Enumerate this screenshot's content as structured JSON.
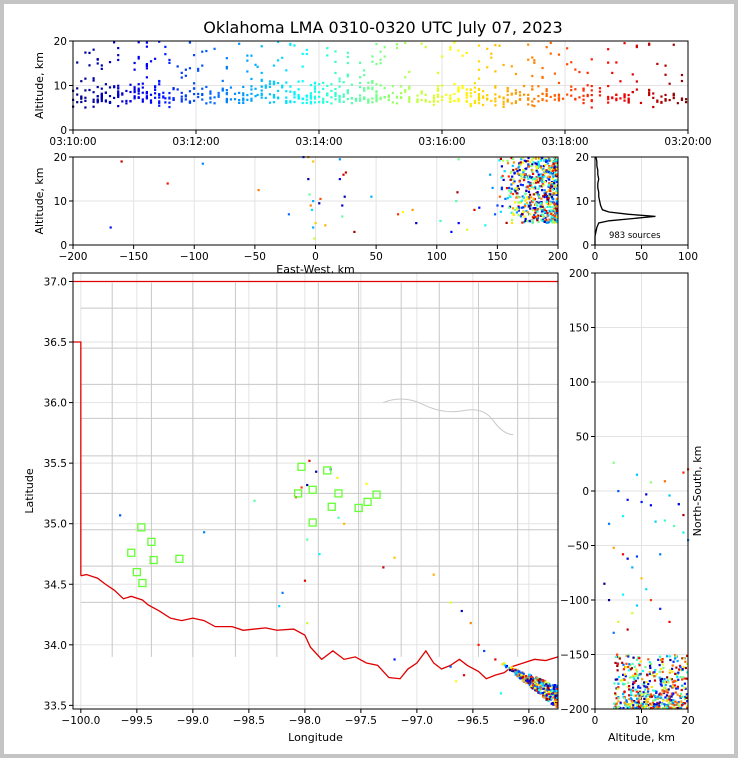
{
  "title": "Oklahoma LMA 0310-0320 UTC July 07, 2023",
  "colors": {
    "state_border": "#e00000",
    "county_border": "#c8c8c8",
    "station_marker": "#66ff33",
    "frame": "#c4c4c4"
  },
  "chart_data": [
    {
      "type": "scatter",
      "panel": "altitude-time",
      "xlabel": "",
      "ylabel": "Altitude, km",
      "xlim": [
        "03:10:00",
        "03:20:00"
      ],
      "ylim": [
        0,
        20
      ],
      "xticks": [
        "03:10:00",
        "03:12:00",
        "03:14:00",
        "03:16:00",
        "03:18:00",
        "03:20:00"
      ],
      "yticks": [
        "0",
        "10",
        "20"
      ],
      "grid": true,
      "color_by": "time",
      "colormap": "jet",
      "clusters": [
        {
          "t_start": "03:10:00",
          "t_end": "03:11:30",
          "alt_min": 5,
          "alt_max": 20,
          "count": 150
        },
        {
          "t_start": "03:11:30",
          "t_end": "03:13:00",
          "alt_min": 5,
          "alt_max": 20,
          "count": 110
        },
        {
          "t_start": "03:13:00",
          "t_end": "03:15:00",
          "alt_min": 6,
          "alt_max": 20,
          "count": 200
        },
        {
          "t_start": "03:15:00",
          "t_end": "03:17:30",
          "alt_min": 5,
          "alt_max": 20,
          "count": 190
        },
        {
          "t_start": "03:17:30",
          "t_end": "03:20:00",
          "alt_min": 5,
          "alt_max": 20,
          "count": 140
        }
      ]
    },
    {
      "type": "scatter",
      "panel": "altitude-eastwest",
      "xlabel": "East-West, km",
      "ylabel": "Altitude, km",
      "xlim": [
        -200,
        200
      ],
      "ylim": [
        0,
        20
      ],
      "xticks": [
        "−200",
        "−150",
        "−100",
        "−50",
        "0",
        "50",
        "100",
        "150",
        "200"
      ],
      "yticks": [
        "0",
        "10",
        "20"
      ],
      "grid": true,
      "scattered": [
        [
          -160,
          19
        ],
        [
          -122,
          14
        ],
        [
          -93,
          18.5
        ],
        [
          -169,
          4
        ],
        [
          -47,
          12.5
        ],
        [
          -22,
          7
        ],
        [
          -10,
          20
        ],
        [
          -6,
          20
        ],
        [
          -2,
          19
        ],
        [
          -6,
          15
        ],
        [
          -5,
          11.5
        ],
        [
          -2,
          10
        ],
        [
          -4,
          9
        ],
        [
          -3,
          8
        ],
        [
          0,
          5
        ],
        [
          -2,
          4
        ],
        [
          -1,
          1.5
        ],
        [
          3,
          9.5
        ],
        [
          4,
          10.5
        ],
        [
          8,
          4.5
        ],
        [
          20,
          19.5
        ],
        [
          23,
          16
        ],
        [
          20,
          15
        ],
        [
          24,
          11
        ],
        [
          22,
          9
        ],
        [
          22,
          6.5
        ],
        [
          25,
          16.5
        ],
        [
          32,
          3
        ],
        [
          46,
          11
        ],
        [
          68,
          7
        ],
        [
          72,
          7.5
        ],
        [
          80,
          8
        ],
        [
          83,
          5
        ],
        [
          103,
          5.5
        ],
        [
          112,
          3
        ],
        [
          118,
          5
        ],
        [
          118,
          19.5
        ],
        [
          117,
          12
        ],
        [
          116,
          10
        ],
        [
          125,
          3.5
        ],
        [
          131,
          8
        ],
        [
          135,
          8.5
        ],
        [
          140,
          4.5
        ],
        [
          144,
          16
        ],
        [
          150,
          9
        ],
        [
          152,
          11
        ],
        [
          148,
          7
        ],
        [
          146,
          13
        ]
      ],
      "dense_region": {
        "x_min": 150,
        "x_max": 200,
        "alt_min": 5,
        "alt_max": 20,
        "count": 600
      }
    },
    {
      "type": "line",
      "panel": "altitude-histogram",
      "xlabel": "",
      "ylabel": "",
      "xlim": [
        0,
        100
      ],
      "ylim": [
        0,
        20
      ],
      "xticks": [
        "0",
        "50",
        "100"
      ],
      "yticks": [
        "0",
        "10",
        "20"
      ],
      "grid": true,
      "annotation": "983 sources",
      "profile": [
        [
          0,
          0
        ],
        [
          0,
          1
        ],
        [
          0,
          2
        ],
        [
          1,
          3
        ],
        [
          2,
          4
        ],
        [
          4,
          5
        ],
        [
          15,
          5.5
        ],
        [
          40,
          6
        ],
        [
          65,
          6.5
        ],
        [
          35,
          7
        ],
        [
          15,
          7.5
        ],
        [
          8,
          8
        ],
        [
          6,
          9
        ],
        [
          5,
          10
        ],
        [
          4,
          11
        ],
        [
          4,
          12
        ],
        [
          3,
          13
        ],
        [
          3,
          14
        ],
        [
          4,
          15
        ],
        [
          3,
          16
        ],
        [
          3,
          17
        ],
        [
          2,
          18
        ],
        [
          2,
          19
        ],
        [
          1,
          20
        ]
      ]
    },
    {
      "type": "scatter",
      "panel": "plan-view",
      "xlabel": "Longitude",
      "ylabel": "Latitude",
      "xlim": [
        -100.07,
        -95.74
      ],
      "ylim": [
        33.47,
        37.07
      ],
      "xticks": [
        "−100.0",
        "−99.5",
        "−99.0",
        "−98.5",
        "−98.0",
        "−97.5",
        "−97.0",
        "−96.5",
        "−96.0"
      ],
      "yticks": [
        "33.5",
        "34.0",
        "34.5",
        "35.0",
        "35.5",
        "36.0",
        "36.5",
        "37.0"
      ],
      "grid": true,
      "stations": [
        [
          -98.03,
          35.47
        ],
        [
          -97.8,
          35.44
        ],
        [
          -97.93,
          35.28
        ],
        [
          -97.7,
          35.25
        ],
        [
          -98.06,
          35.25
        ],
        [
          -97.36,
          35.24
        ],
        [
          -97.44,
          35.18
        ],
        [
          -97.76,
          35.14
        ],
        [
          -97.52,
          35.13
        ],
        [
          -97.93,
          35.01
        ],
        [
          -99.46,
          34.97
        ],
        [
          -99.37,
          34.85
        ],
        [
          -99.55,
          34.76
        ],
        [
          -99.12,
          34.71
        ],
        [
          -99.35,
          34.7
        ],
        [
          -99.5,
          34.6
        ],
        [
          -99.45,
          34.51
        ]
      ],
      "scattered": [
        [
          -99.65,
          35.07
        ],
        [
          -98.9,
          34.93
        ],
        [
          -98.45,
          35.19
        ],
        [
          -98.08,
          35.22
        ],
        [
          -98.03,
          35.3
        ],
        [
          -97.98,
          35.32
        ],
        [
          -97.96,
          35.52
        ],
        [
          -97.9,
          35.43
        ],
        [
          -97.77,
          35.45
        ],
        [
          -97.71,
          35.38
        ],
        [
          -97.87,
          34.75
        ],
        [
          -97.98,
          34.87
        ],
        [
          -97.7,
          35.05
        ],
        [
          -97.65,
          35.0
        ],
        [
          -97.2,
          34.72
        ],
        [
          -97.3,
          34.64
        ],
        [
          -97.45,
          35.33
        ],
        [
          -98.0,
          34.53
        ],
        [
          -98.23,
          34.32
        ],
        [
          -98.2,
          34.43
        ],
        [
          -97.98,
          34.18
        ],
        [
          -96.85,
          34.58
        ],
        [
          -96.7,
          34.35
        ],
        [
          -96.6,
          34.28
        ],
        [
          -96.52,
          34.18
        ],
        [
          -96.45,
          34.0
        ],
        [
          -96.4,
          33.95
        ],
        [
          -97.2,
          33.88
        ],
        [
          -96.65,
          33.7
        ],
        [
          -96.7,
          33.82
        ],
        [
          -96.58,
          33.75
        ],
        [
          -96.3,
          33.88
        ],
        [
          -96.22,
          33.85
        ],
        [
          -96.25,
          33.6
        ]
      ],
      "dense_region": {
        "lon_min": -96.25,
        "lon_max": -95.74,
        "lat_min": 33.47,
        "lat_max": 33.85,
        "count": 350
      }
    },
    {
      "type": "scatter",
      "panel": "northsouth-altitude",
      "xlabel": "Altitude, km",
      "ylabel": "North-South, km",
      "xlim": [
        0,
        20
      ],
      "ylim": [
        -200,
        200
      ],
      "xticks": [
        "0",
        "10",
        "20"
      ],
      "yticks": [
        "−200",
        "−150",
        "−100",
        "−50",
        "0",
        "50",
        "100",
        "150",
        "200"
      ],
      "grid": true,
      "scattered": [
        [
          4,
          26
        ],
        [
          9,
          15
        ],
        [
          12,
          8
        ],
        [
          15,
          9
        ],
        [
          16,
          -4
        ],
        [
          19,
          17
        ],
        [
          20,
          20
        ],
        [
          18,
          -12
        ],
        [
          19,
          -22
        ],
        [
          7,
          -8
        ],
        [
          5,
          0
        ],
        [
          6,
          -23
        ],
        [
          3,
          -30
        ],
        [
          4,
          -52
        ],
        [
          6,
          -58
        ],
        [
          7,
          -62
        ],
        [
          8,
          -70
        ],
        [
          9,
          -60
        ],
        [
          10,
          -10
        ],
        [
          11,
          -3
        ],
        [
          12,
          -13
        ],
        [
          13,
          -28
        ],
        [
          15,
          -27
        ],
        [
          14,
          -58
        ],
        [
          10,
          -80
        ],
        [
          11,
          -90
        ],
        [
          12,
          -100
        ],
        [
          14,
          -108
        ],
        [
          16,
          -120
        ],
        [
          9,
          -105
        ],
        [
          8,
          -112
        ],
        [
          3,
          -100
        ],
        [
          2,
          -85
        ],
        [
          5,
          -120
        ],
        [
          4,
          -130
        ],
        [
          7,
          -127
        ],
        [
          6,
          -95
        ],
        [
          18,
          -12
        ],
        [
          17,
          -32
        ],
        [
          19,
          -38
        ],
        [
          20,
          -45
        ]
      ],
      "dense_region": {
        "alt_min": 4,
        "alt_max": 20,
        "ns_min": -200,
        "ns_max": -150,
        "count": 500
      }
    }
  ]
}
